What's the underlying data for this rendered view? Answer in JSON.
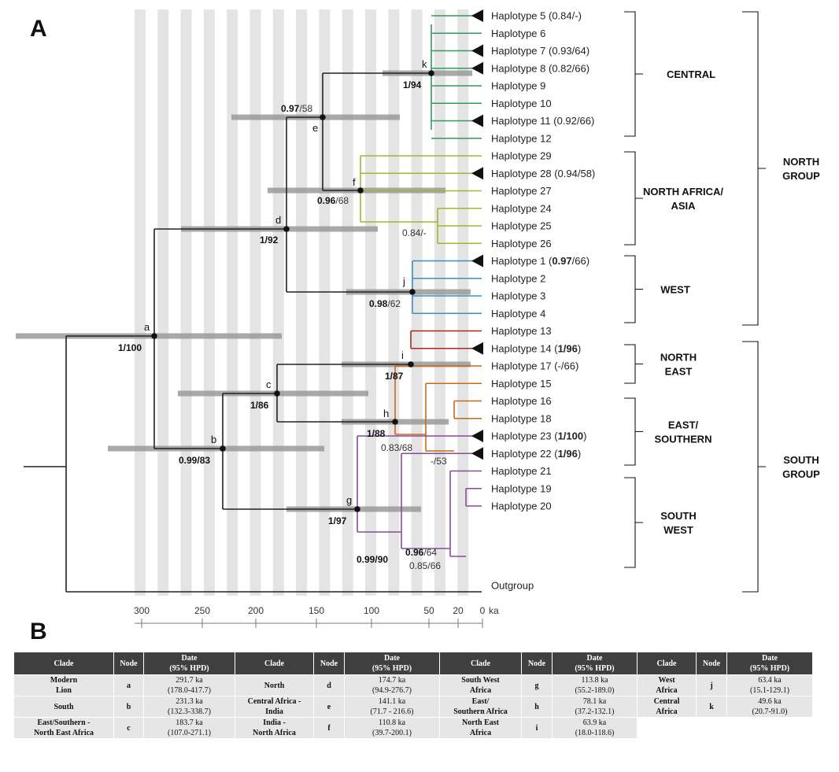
{
  "panel_a_label": "A",
  "panel_b_label": "B",
  "tips": [
    {
      "name": "hap5",
      "parts": [
        {
          "t": "Haplotype 5 (0.84/-)"
        }
      ],
      "collapsed": true
    },
    {
      "name": "hap6",
      "parts": [
        {
          "t": "Haplotype 6"
        }
      ],
      "collapsed": false
    },
    {
      "name": "hap7",
      "parts": [
        {
          "t": "Haplotype 7 (0.93/64)"
        }
      ],
      "collapsed": true
    },
    {
      "name": "hap8",
      "parts": [
        {
          "t": "Haplotype 8 (0.82/66)"
        }
      ],
      "collapsed": true
    },
    {
      "name": "hap9",
      "parts": [
        {
          "t": "Haplotype 9"
        }
      ],
      "collapsed": false
    },
    {
      "name": "hap10",
      "parts": [
        {
          "t": "Haplotype 10"
        }
      ],
      "collapsed": false
    },
    {
      "name": "hap11",
      "parts": [
        {
          "t": "Haplotype 11 (0.92/66)"
        }
      ],
      "collapsed": true
    },
    {
      "name": "hap12",
      "parts": [
        {
          "t": "Haplotype 12"
        }
      ],
      "collapsed": false
    },
    {
      "name": "hap29",
      "parts": [
        {
          "t": "Haplotype 29"
        }
      ],
      "collapsed": false
    },
    {
      "name": "hap28",
      "parts": [
        {
          "t": "Haplotype 28 (0.94/58)"
        }
      ],
      "collapsed": true
    },
    {
      "name": "hap27",
      "parts": [
        {
          "t": "Haplotype 27"
        }
      ],
      "collapsed": false
    },
    {
      "name": "hap24",
      "parts": [
        {
          "t": "Haplotype 24"
        }
      ],
      "collapsed": false
    },
    {
      "name": "hap25",
      "parts": [
        {
          "t": "Haplotype 25"
        }
      ],
      "collapsed": false
    },
    {
      "name": "hap26",
      "parts": [
        {
          "t": "Haplotype 26"
        }
      ],
      "collapsed": false
    },
    {
      "name": "hap1",
      "parts": [
        {
          "t": "Haplotype 1 ("
        },
        {
          "t": "0.97",
          "b": true
        },
        {
          "t": "/66)"
        }
      ],
      "collapsed": true
    },
    {
      "name": "hap2",
      "parts": [
        {
          "t": "Haplotype 2"
        }
      ],
      "collapsed": false
    },
    {
      "name": "hap3",
      "parts": [
        {
          "t": "Haplotype 3"
        }
      ],
      "collapsed": false
    },
    {
      "name": "hap4",
      "parts": [
        {
          "t": "Haplotype 4"
        }
      ],
      "collapsed": false
    },
    {
      "name": "hap13",
      "parts": [
        {
          "t": "Haplotype 13"
        }
      ],
      "collapsed": false
    },
    {
      "name": "hap14",
      "parts": [
        {
          "t": "Haplotype 14 ("
        },
        {
          "t": "1/96",
          "b": true
        },
        {
          "t": ")"
        }
      ],
      "collapsed": true
    },
    {
      "name": "hap17",
      "parts": [
        {
          "t": "Haplotype 17 (-/66)"
        }
      ],
      "collapsed": false
    },
    {
      "name": "hap15",
      "parts": [
        {
          "t": "Haplotype 15"
        }
      ],
      "collapsed": false
    },
    {
      "name": "hap16",
      "parts": [
        {
          "t": "Haplotype 16"
        }
      ],
      "collapsed": false
    },
    {
      "name": "hap18",
      "parts": [
        {
          "t": "Haplotype 18"
        }
      ],
      "collapsed": false
    },
    {
      "name": "hap23",
      "parts": [
        {
          "t": "Haplotype 23 ("
        },
        {
          "t": "1/100",
          "b": true
        },
        {
          "t": ")"
        }
      ],
      "collapsed": true
    },
    {
      "name": "hap22",
      "parts": [
        {
          "t": "Haplotype 22 ("
        },
        {
          "t": "1/96",
          "b": true
        },
        {
          "t": ")"
        }
      ],
      "collapsed": true
    },
    {
      "name": "hap21",
      "parts": [
        {
          "t": "Haplotype 21"
        }
      ],
      "collapsed": false
    },
    {
      "name": "hap19",
      "parts": [
        {
          "t": "Haplotype 19"
        }
      ],
      "collapsed": false
    },
    {
      "name": "hap20",
      "parts": [
        {
          "t": "Haplotype 20"
        }
      ],
      "collapsed": false
    },
    {
      "name": "outgroup",
      "parts": [
        {
          "t": "Outgroup"
        }
      ],
      "collapsed": false
    }
  ],
  "node_letters": [
    "a",
    "b",
    "c",
    "d",
    "e",
    "f",
    "g",
    "h",
    "i",
    "j",
    "k"
  ],
  "supports": [
    {
      "name": "a",
      "parts": [
        {
          "t": "1/100",
          "b": true
        }
      ]
    },
    {
      "name": "b",
      "parts": [
        {
          "t": "0.99/83",
          "b": true
        }
      ]
    },
    {
      "name": "c",
      "parts": [
        {
          "t": "1/86",
          "b": true
        }
      ]
    },
    {
      "name": "d",
      "parts": [
        {
          "t": "1/92",
          "b": true
        }
      ]
    },
    {
      "name": "e",
      "parts": [
        {
          "t": "0.97",
          "b": true
        },
        {
          "t": "/58"
        }
      ]
    },
    {
      "name": "f",
      "parts": [
        {
          "t": "0.96",
          "b": true
        },
        {
          "t": "/68"
        }
      ]
    },
    {
      "name": "g",
      "parts": [
        {
          "t": "1/97",
          "b": true
        }
      ]
    },
    {
      "name": "h",
      "parts": [
        {
          "t": "1/88",
          "b": true
        }
      ]
    },
    {
      "name": "i",
      "parts": [
        {
          "t": "1/87",
          "b": true
        }
      ]
    },
    {
      "name": "j",
      "parts": [
        {
          "t": "0.98",
          "b": true
        },
        {
          "t": "/62"
        }
      ]
    },
    {
      "name": "k",
      "parts": [
        {
          "t": "1/94",
          "b": true
        }
      ]
    },
    {
      "name": "n2426",
      "parts": [
        {
          "t": "0.84/-"
        }
      ]
    },
    {
      "name": "n1618",
      "parts": [
        {
          "t": "-/53"
        }
      ]
    },
    {
      "name": "n1516",
      "parts": [
        {
          "t": "0.83/68"
        }
      ]
    },
    {
      "name": "n2122",
      "parts": [
        {
          "t": "0.99/90",
          "b": true
        }
      ]
    },
    {
      "name": "n1921",
      "parts": [
        {
          "t": "0.96",
          "b": true
        },
        {
          "t": "/64"
        }
      ]
    },
    {
      "name": "n1920",
      "parts": [
        {
          "t": "0.85/66"
        }
      ]
    }
  ],
  "clades": {
    "central": [
      "CENTRAL"
    ],
    "nafrica": [
      "NORTH AFRICA/",
      "ASIA"
    ],
    "west": [
      "WEST"
    ],
    "neast": [
      "NORTH",
      "EAST"
    ],
    "eastsouth": [
      "EAST/",
      "SOUTHERN"
    ],
    "southwest": [
      "SOUTH",
      "WEST"
    ],
    "northgroup": [
      "NORTH",
      "GROUP"
    ],
    "southgroup": [
      "SOUTH",
      "GROUP"
    ]
  },
  "axis": {
    "ticks": [
      "300",
      "250",
      "200",
      "150",
      "100",
      "50",
      "20",
      "0"
    ],
    "unit": "ka"
  },
  "colors": {
    "central": "#2e9c5a",
    "nafrica": "#a8b232",
    "west": "#3d8fc0",
    "neast": "#a8281f",
    "eastsouth": "#c46a1e",
    "southwest": "#8a4a9a",
    "stem": "#222222",
    "hpd": "#9a9a9a",
    "band": "#e4e4e4"
  },
  "table": {
    "header": {
      "clade": "Clade",
      "node": "Node",
      "date": "Date",
      "hpd": "(95% HPD)"
    },
    "columns": [
      [
        {
          "clade": [
            "Modern",
            "Lion"
          ],
          "node": "a",
          "date": "291.7 ka",
          "range": "(178.0-417.7)"
        },
        {
          "clade": [
            "South"
          ],
          "node": "b",
          "date": "231.3 ka",
          "range": "(132.3-338.7)"
        },
        {
          "clade": [
            "East/Southern -",
            "North East Africa"
          ],
          "node": "c",
          "date": "183.7 ka",
          "range": "(107.0-271.1)"
        }
      ],
      [
        {
          "clade": [
            "North"
          ],
          "node": "d",
          "date": "174.7 ka",
          "range": "(94.9-276.7)"
        },
        {
          "clade": [
            "Central Africa -",
            "India"
          ],
          "node": "e",
          "date": "141.1 ka",
          "range": "(71.7 - 216.6)"
        },
        {
          "clade": [
            "India -",
            "North Africa"
          ],
          "node": "f",
          "date": "110.8 ka",
          "range": "(39.7-200.1)"
        }
      ],
      [
        {
          "clade": [
            "South West",
            "Africa"
          ],
          "node": "g",
          "date": "113.8 ka",
          "range": "(55.2-189.0)"
        },
        {
          "clade": [
            "East/",
            "Southern Africa"
          ],
          "node": "h",
          "date": "78.1 ka",
          "range": "(37.2-132.1)"
        },
        {
          "clade": [
            "North East",
            "Africa"
          ],
          "node": "i",
          "date": "63.9 ka",
          "range": "(18.0-118.6)"
        }
      ],
      [
        {
          "clade": [
            "West",
            "Africa"
          ],
          "node": "j",
          "date": "63.4 ka",
          "range": "(15.1-129.1)"
        },
        {
          "clade": [
            "Central",
            "Africa"
          ],
          "node": "k",
          "date": "49.6 ka",
          "range": "(20.7-91.0)"
        }
      ]
    ]
  }
}
